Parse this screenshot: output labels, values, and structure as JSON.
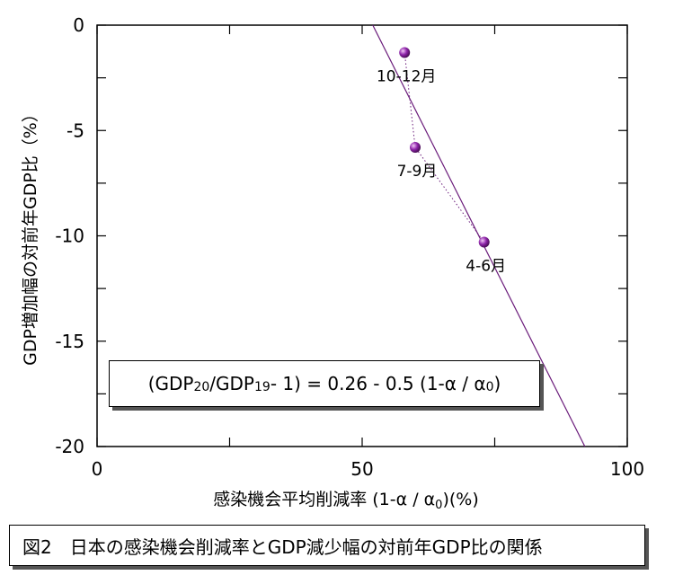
{
  "chart_data": {
    "type": "scatter",
    "xlabel": "感染機会平均削減率 (1-α / α",
    "xlabel_sub": "0",
    "xlabel_tail": ")(%)",
    "ylabel": "GDP増加幅の対前年GDP比（%）",
    "xlim": [
      0,
      100
    ],
    "ylim": [
      -20,
      0
    ],
    "x_ticks": [
      0,
      50,
      100
    ],
    "y_ticks": [
      0,
      -5,
      -10,
      -15,
      -20
    ],
    "points": [
      {
        "label": "10-12月",
        "x": 58,
        "y": -1.3
      },
      {
        "label": "7-9月",
        "x": 60,
        "y": -5.8
      },
      {
        "label": "4-6月",
        "x": 73,
        "y": -10.3
      }
    ],
    "fit_line": {
      "intercept": 26,
      "slope": -0.5
    },
    "colors": {
      "marker": "#8e24aa",
      "line": "#6a1b7a",
      "dotted": "#6a1b7a"
    },
    "equation": {
      "part1": "(GDP",
      "sub1": "20",
      "part2": "/GDP",
      "sub2": "19",
      "part3": " - 1) = 0.26 - 0.5 (1-α / α",
      "sub3": "0",
      "part4": ")"
    }
  },
  "caption": "図2　日本の感染機会削減率とGDP減少幅の対前年GDP比の関係"
}
